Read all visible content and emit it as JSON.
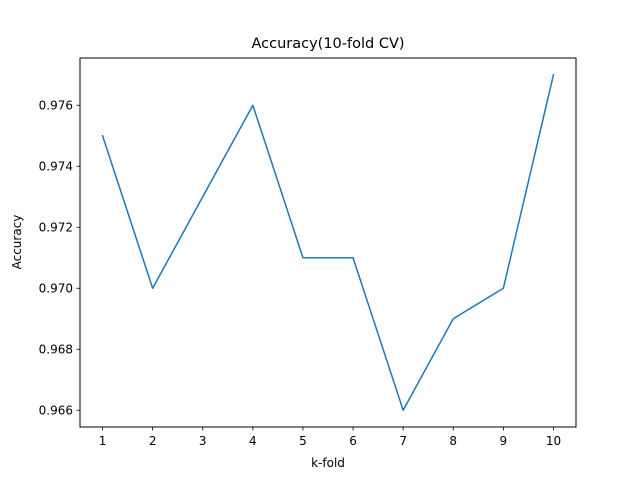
{
  "chart_data": {
    "type": "line",
    "title": "Accuracy(10-fold CV)",
    "xlabel": "k-fold",
    "ylabel": "Accuracy",
    "x": [
      1,
      2,
      3,
      4,
      5,
      6,
      7,
      8,
      9,
      10
    ],
    "x_tick_labels": [
      "1",
      "2",
      "3",
      "4",
      "5",
      "6",
      "7",
      "8",
      "9",
      "10"
    ],
    "y_ticks": [
      0.966,
      0.968,
      0.97,
      0.972,
      0.974,
      0.976
    ],
    "y_tick_labels": [
      "0.966",
      "0.968",
      "0.970",
      "0.972",
      "0.974",
      "0.976"
    ],
    "xlim": [
      0.55,
      10.45
    ],
    "ylim": [
      0.96545,
      0.97755
    ],
    "grid": false,
    "series": [
      {
        "values": [
          0.975,
          0.97,
          0.973,
          0.976,
          0.971,
          0.971,
          0.966,
          0.969,
          0.97,
          0.977
        ],
        "color": "#1f77b4"
      }
    ]
  }
}
